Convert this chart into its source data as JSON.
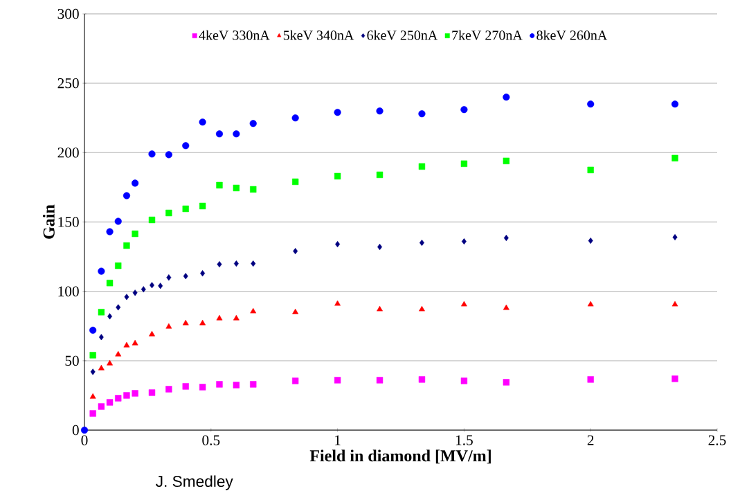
{
  "chart_data": {
    "type": "scatter",
    "xlabel": "Field in diamond [MV/m]",
    "ylabel": "Gain",
    "annotations": [
      "J. Smedley"
    ],
    "xlim": [
      0,
      2.5
    ],
    "ylim": [
      0,
      300
    ],
    "xticks": [
      0,
      0.5,
      1,
      1.5,
      2,
      2.5
    ],
    "yticks": [
      0,
      50,
      100,
      150,
      200,
      250,
      300
    ],
    "grid": "y",
    "legend": "top",
    "series": [
      {
        "name": "4keV 330nA",
        "color": "#ff00ff",
        "marker": "square",
        "x": [
          0.0333,
          0.0667,
          0.1,
          0.1333,
          0.1667,
          0.2,
          0.2667,
          0.3333,
          0.4,
          0.4667,
          0.5333,
          0.6,
          0.6667,
          0.8333,
          1,
          1.1667,
          1.3333,
          1.5,
          1.6667,
          2,
          2.3333
        ],
        "values": [
          12,
          17,
          20,
          23,
          25,
          26.5,
          27,
          29.5,
          31.5,
          31,
          33,
          32.5,
          33,
          35.5,
          36,
          36,
          36.5,
          35.5,
          34.5,
          36.5,
          37
        ]
      },
      {
        "name": "5keV 340nA",
        "color": "#ff0000",
        "marker": "triangle",
        "x": [
          0.0333,
          0.0667,
          0.1,
          0.1333,
          0.1667,
          0.2,
          0.2667,
          0.3333,
          0.4,
          0.4667,
          0.5333,
          0.6,
          0.6667,
          0.8333,
          1,
          1.1667,
          1.3333,
          1.5,
          1.6667,
          2,
          2.3333
        ],
        "values": [
          24,
          44.5,
          48,
          54.5,
          61,
          62.5,
          69,
          74.5,
          77,
          77,
          80.5,
          80.5,
          85.5,
          85,
          91,
          87,
          87,
          90.5,
          88,
          90.5,
          90.5
        ]
      },
      {
        "name": "6keV 250nA",
        "color": "#000080",
        "marker": "diamond",
        "x": [
          0.0333,
          0.0667,
          0.1,
          0.1333,
          0.1667,
          0.2,
          0.2333,
          0.2667,
          0.3,
          0.3333,
          0.4,
          0.4667,
          0.5333,
          0.6,
          0.6667,
          0.8333,
          1,
          1.1667,
          1.3333,
          1.5,
          1.6667,
          2,
          2.3333
        ],
        "values": [
          42,
          67,
          82,
          88.5,
          96,
          99,
          101.5,
          104.5,
          104,
          110,
          111,
          113,
          119.5,
          120,
          120,
          129,
          134,
          132,
          135,
          136,
          138.5,
          136.5,
          139
        ]
      },
      {
        "name": "7keV 270nA",
        "color": "#00ff00",
        "marker": "square",
        "x": [
          0.0333,
          0.0667,
          0.1,
          0.1333,
          0.1667,
          0.2,
          0.2667,
          0.3333,
          0.4,
          0.4667,
          0.5333,
          0.6,
          0.6667,
          0.8333,
          1,
          1.1667,
          1.3333,
          1.5,
          1.6667,
          2,
          2.3333
        ],
        "values": [
          54,
          85,
          106,
          118.5,
          133,
          141.5,
          151.5,
          156.5,
          159.5,
          161.5,
          176.5,
          174.5,
          173.5,
          179,
          183,
          184,
          190,
          192,
          194,
          187.5,
          196
        ]
      },
      {
        "name": "8keV 260nA",
        "color": "#0000ff",
        "marker": "circle",
        "x": [
          0,
          0.0333,
          0.0667,
          0.1,
          0.1333,
          0.1667,
          0.2,
          0.2667,
          0.3333,
          0.4,
          0.4667,
          0.5333,
          0.6,
          0.6667,
          0.8333,
          1,
          1.1667,
          1.3333,
          1.5,
          1.6667,
          2,
          2.3333
        ],
        "values": [
          0,
          72,
          114.5,
          143,
          150.5,
          169,
          178,
          199,
          198.5,
          205,
          222,
          213.5,
          213.5,
          221,
          225,
          229,
          230,
          228,
          231,
          240,
          235,
          235
        ]
      }
    ]
  }
}
